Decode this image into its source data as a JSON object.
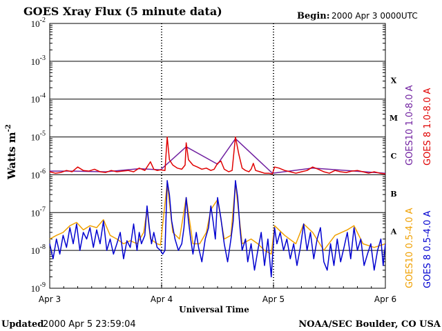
{
  "header": {
    "title": "GOES Xray Flux (5 minute data)",
    "begin_label": "Begin:",
    "begin_value": "2000 Apr 3 0000UTC"
  },
  "footer": {
    "updated_label": "Updated",
    "updated_value": "2000 Apr  5 23:59:04",
    "source": "NOAA/SEC Boulder, CO USA"
  },
  "chart_data": {
    "type": "line",
    "title": "GOES Xray Flux (5 minute data)",
    "xlabel": "Universal Time",
    "ylabel": "Watts m",
    "ylabel_superscript": "-2",
    "x_ticks": [
      "Apr 3",
      "Apr 4",
      "Apr 5",
      "Apr 6"
    ],
    "x_range_days": [
      0,
      3
    ],
    "y_scale": "log",
    "y_ticks": [
      {
        "base": "10",
        "exp": "-9",
        "value": 1e-09
      },
      {
        "base": "10",
        "exp": "-8",
        "value": 1e-08
      },
      {
        "base": "10",
        "exp": "-7",
        "value": 1e-07
      },
      {
        "base": "10",
        "exp": "-6",
        "value": 1e-06
      },
      {
        "base": "10",
        "exp": "-5",
        "value": 1e-05
      },
      {
        "base": "10",
        "exp": "-4",
        "value": 0.0001
      },
      {
        "base": "10",
        "exp": "-3",
        "value": 0.001
      },
      {
        "base": "10",
        "exp": "-2",
        "value": 0.01
      }
    ],
    "ylim": [
      1e-09,
      0.01
    ],
    "flare_classes": [
      {
        "label": "A",
        "value": 3.16e-08
      },
      {
        "label": "B",
        "value": 3.16e-07
      },
      {
        "label": "C",
        "value": 3.16e-06
      },
      {
        "label": "M",
        "value": 3.16e-05
      },
      {
        "label": "X",
        "value": 0.000316
      }
    ],
    "grid": "horizontal lines at each decade; dotted vertical lines at day boundaries",
    "legend_placement": "right",
    "series": [
      {
        "name": "GOES 8 1.0-8.0 A",
        "color": "#e00000",
        "points": [
          [
            0.0,
            1.2e-06
          ],
          [
            0.05,
            1.1e-06
          ],
          [
            0.1,
            1.15e-06
          ],
          [
            0.15,
            1.3e-06
          ],
          [
            0.2,
            1.2e-06
          ],
          [
            0.25,
            1.6e-06
          ],
          [
            0.3,
            1.3e-06
          ],
          [
            0.35,
            1.25e-06
          ],
          [
            0.4,
            1.4e-06
          ],
          [
            0.45,
            1.2e-06
          ],
          [
            0.5,
            1.15e-06
          ],
          [
            0.55,
            1.3e-06
          ],
          [
            0.6,
            1.2e-06
          ],
          [
            0.65,
            1.25e-06
          ],
          [
            0.7,
            1.3e-06
          ],
          [
            0.75,
            1.2e-06
          ],
          [
            0.8,
            1.5e-06
          ],
          [
            0.85,
            1.3e-06
          ],
          [
            0.9,
            2.2e-06
          ],
          [
            0.93,
            1.4e-06
          ],
          [
            0.96,
            1.3e-06
          ],
          [
            0.99,
            1.35e-06
          ],
          [
            1.03,
            1.3e-06
          ],
          [
            1.05,
            1e-05
          ],
          [
            1.07,
            2.5e-06
          ],
          [
            1.1,
            1.8e-06
          ],
          [
            1.14,
            1.5e-06
          ],
          [
            1.18,
            1.4e-06
          ],
          [
            1.21,
            1.8e-06
          ],
          [
            1.22,
            7e-06
          ],
          [
            1.24,
            2.5e-06
          ],
          [
            1.28,
            1.8e-06
          ],
          [
            1.32,
            1.6e-06
          ],
          [
            1.36,
            1.4e-06
          ],
          [
            1.4,
            1.5e-06
          ],
          [
            1.44,
            1.3e-06
          ],
          [
            1.47,
            1.4e-06
          ],
          [
            1.5,
            2e-06
          ],
          [
            1.53,
            2.3e-06
          ],
          [
            1.56,
            1.4e-06
          ],
          [
            1.6,
            1.2e-06
          ],
          [
            1.63,
            1.3e-06
          ],
          [
            1.66,
            1e-05
          ],
          [
            1.69,
            3.5e-06
          ],
          [
            1.72,
            1.5e-06
          ],
          [
            1.75,
            1.3e-06
          ],
          [
            1.78,
            1.2e-06
          ],
          [
            1.8,
            1.4e-06
          ],
          [
            1.82,
            2e-06
          ],
          [
            1.84,
            1.3e-06
          ],
          [
            1.88,
            1.2e-06
          ],
          [
            1.92,
            1.1e-06
          ],
          [
            1.96,
            1.1e-06
          ],
          [
            1.99,
            1.05e-06
          ],
          [
            2.01,
            1.6e-06
          ],
          [
            2.05,
            1.5e-06
          ],
          [
            2.1,
            1.3e-06
          ],
          [
            2.15,
            1.2e-06
          ],
          [
            2.2,
            1.1e-06
          ],
          [
            2.25,
            1.2e-06
          ],
          [
            2.3,
            1.3e-06
          ],
          [
            2.35,
            1.6e-06
          ],
          [
            2.4,
            1.4e-06
          ],
          [
            2.45,
            1.2e-06
          ],
          [
            2.5,
            1.1e-06
          ],
          [
            2.55,
            1.3e-06
          ],
          [
            2.6,
            1.2e-06
          ],
          [
            2.65,
            1.15e-06
          ],
          [
            2.7,
            1.25e-06
          ],
          [
            2.75,
            1.3e-06
          ],
          [
            2.8,
            1.2e-06
          ],
          [
            2.85,
            1.1e-06
          ],
          [
            2.9,
            1.2e-06
          ],
          [
            2.95,
            1.1e-06
          ],
          [
            3.0,
            1.05e-06
          ]
        ]
      },
      {
        "name": "GOES10 1.0-8.0 A",
        "color": "#7020a0",
        "points": [
          [
            0.0,
            1.25e-06
          ],
          [
            0.2,
            1.25e-06
          ],
          [
            0.5,
            1.2e-06
          ],
          [
            0.8,
            1.45e-06
          ],
          [
            0.99,
            1.35e-06
          ],
          [
            1.22,
            5.5e-06
          ],
          [
            1.5,
            1.9e-06
          ],
          [
            1.66,
            9e-06
          ],
          [
            1.99,
            1.1e-06
          ],
          [
            2.35,
            1.5e-06
          ],
          [
            3.0,
            1.1e-06
          ]
        ]
      },
      {
        "name": "GOES 8 0.5-4.0 A",
        "color": "#0000d0",
        "points": [
          [
            0.0,
            1.5e-08
          ],
          [
            0.03,
            6e-09
          ],
          [
            0.06,
            2e-08
          ],
          [
            0.09,
            8e-09
          ],
          [
            0.12,
            2.5e-08
          ],
          [
            0.15,
            1.2e-08
          ],
          [
            0.18,
            4e-08
          ],
          [
            0.21,
            1.5e-08
          ],
          [
            0.24,
            5e-08
          ],
          [
            0.27,
            1e-08
          ],
          [
            0.3,
            3e-08
          ],
          [
            0.33,
            2e-08
          ],
          [
            0.36,
            4e-08
          ],
          [
            0.39,
            1.2e-08
          ],
          [
            0.42,
            3.5e-08
          ],
          [
            0.45,
            1.5e-08
          ],
          [
            0.48,
            6e-08
          ],
          [
            0.51,
            1e-08
          ],
          [
            0.54,
            2e-08
          ],
          [
            0.57,
            8e-09
          ],
          [
            0.6,
            1.5e-08
          ],
          [
            0.63,
            3e-08
          ],
          [
            0.66,
            6e-09
          ],
          [
            0.69,
            1.8e-08
          ],
          [
            0.72,
            1.2e-08
          ],
          [
            0.75,
            5e-08
          ],
          [
            0.78,
            1e-08
          ],
          [
            0.8,
            3e-08
          ],
          [
            0.82,
            1.5e-08
          ],
          [
            0.85,
            2.5e-08
          ],
          [
            0.87,
            1.5e-07
          ],
          [
            0.89,
            4e-08
          ],
          [
            0.91,
            1.5e-08
          ],
          [
            0.93,
            3e-08
          ],
          [
            0.96,
            1.2e-08
          ],
          [
            0.99,
            1e-08
          ],
          [
            1.01,
            8e-09
          ],
          [
            1.03,
            1e-08
          ],
          [
            1.05,
            7e-07
          ],
          [
            1.07,
            3e-07
          ],
          [
            1.09,
            6e-08
          ],
          [
            1.12,
            2e-08
          ],
          [
            1.15,
            1e-08
          ],
          [
            1.18,
            1.5e-08
          ],
          [
            1.2,
            4e-08
          ],
          [
            1.22,
            2.5e-07
          ],
          [
            1.24,
            6e-08
          ],
          [
            1.26,
            2e-08
          ],
          [
            1.28,
            8e-09
          ],
          [
            1.31,
            3e-08
          ],
          [
            1.33,
            1.2e-08
          ],
          [
            1.36,
            5e-09
          ],
          [
            1.39,
            2e-08
          ],
          [
            1.42,
            4e-08
          ],
          [
            1.44,
            1.5e-07
          ],
          [
            1.46,
            6e-08
          ],
          [
            1.48,
            2e-08
          ],
          [
            1.5,
            2.5e-07
          ],
          [
            1.53,
            7e-08
          ],
          [
            1.56,
            1.5e-08
          ],
          [
            1.59,
            5e-09
          ],
          [
            1.62,
            2e-08
          ],
          [
            1.64,
            6e-08
          ],
          [
            1.66,
            7e-07
          ],
          [
            1.68,
            2.5e-07
          ],
          [
            1.7,
            4e-08
          ],
          [
            1.72,
            1e-08
          ],
          [
            1.75,
            2e-08
          ],
          [
            1.77,
            5e-09
          ],
          [
            1.8,
            1.5e-08
          ],
          [
            1.83,
            3e-09
          ],
          [
            1.86,
            1e-08
          ],
          [
            1.89,
            3e-08
          ],
          [
            1.92,
            4e-09
          ],
          [
            1.95,
            2e-08
          ],
          [
            1.98,
            2e-09
          ],
          [
            1.99,
            6e-09
          ],
          [
            2.01,
            4e-08
          ],
          [
            2.03,
            1.5e-08
          ],
          [
            2.06,
            3e-08
          ],
          [
            2.09,
            1e-08
          ],
          [
            2.12,
            2e-08
          ],
          [
            2.15,
            6e-09
          ],
          [
            2.18,
            1.5e-08
          ],
          [
            2.21,
            4e-09
          ],
          [
            2.24,
            1.2e-08
          ],
          [
            2.27,
            5e-08
          ],
          [
            2.3,
            1e-08
          ],
          [
            2.33,
            3e-08
          ],
          [
            2.36,
            6e-09
          ],
          [
            2.39,
            2e-08
          ],
          [
            2.42,
            4e-08
          ],
          [
            2.45,
            5e-09
          ],
          [
            2.48,
            3e-09
          ],
          [
            2.51,
            1.5e-08
          ],
          [
            2.54,
            4e-09
          ],
          [
            2.57,
            2e-08
          ],
          [
            2.6,
            5e-09
          ],
          [
            2.63,
            1.2e-08
          ],
          [
            2.66,
            3e-08
          ],
          [
            2.69,
            6e-09
          ],
          [
            2.72,
            4e-08
          ],
          [
            2.75,
            1e-08
          ],
          [
            2.78,
            2e-08
          ],
          [
            2.81,
            4e-09
          ],
          [
            2.84,
            8e-09
          ],
          [
            2.87,
            1.5e-08
          ],
          [
            2.9,
            3e-09
          ],
          [
            2.93,
            1e-08
          ],
          [
            2.96,
            2e-08
          ],
          [
            2.98,
            4e-09
          ],
          [
            3.0,
            1.5e-08
          ]
        ]
      },
      {
        "name": "GOES10 0.5-4.0 A",
        "color": "#f0a000",
        "points": [
          [
            0.0,
            2e-08
          ],
          [
            0.06,
            2.5e-08
          ],
          [
            0.12,
            3e-08
          ],
          [
            0.18,
            4.5e-08
          ],
          [
            0.24,
            5.5e-08
          ],
          [
            0.3,
            3.5e-08
          ],
          [
            0.36,
            4.5e-08
          ],
          [
            0.42,
            4e-08
          ],
          [
            0.48,
            6.5e-08
          ],
          [
            0.54,
            2.5e-08
          ],
          [
            0.6,
            2e-08
          ],
          [
            0.66,
            1.5e-08
          ],
          [
            0.72,
            1.8e-08
          ],
          [
            0.78,
            1.5e-08
          ],
          [
            0.84,
            3e-08
          ],
          [
            0.87,
            1.2e-07
          ],
          [
            0.9,
            2e-08
          ],
          [
            0.96,
            1.5e-08
          ],
          [
            0.99,
            1.4e-08
          ],
          [
            1.05,
            6e-07
          ],
          [
            1.1,
            3e-08
          ],
          [
            1.16,
            2e-08
          ],
          [
            1.22,
            2.5e-07
          ],
          [
            1.28,
            1.5e-08
          ],
          [
            1.34,
            1.5e-08
          ],
          [
            1.4,
            3e-08
          ],
          [
            1.44,
            1.2e-07
          ],
          [
            1.5,
            2.2e-07
          ],
          [
            1.56,
            2e-08
          ],
          [
            1.62,
            2.5e-08
          ],
          [
            1.66,
            6e-07
          ],
          [
            1.72,
            1.5e-08
          ],
          [
            1.8,
            2e-08
          ],
          [
            1.86,
            1.5e-08
          ],
          [
            1.92,
            1e-08
          ],
          [
            1.98,
            8e-09
          ],
          [
            2.01,
            4.5e-08
          ],
          [
            2.1,
            2.5e-08
          ],
          [
            2.2,
            1.5e-08
          ],
          [
            2.27,
            5e-08
          ],
          [
            2.35,
            3e-08
          ],
          [
            2.45,
            1e-08
          ],
          [
            2.55,
            2.5e-08
          ],
          [
            2.66,
            3.5e-08
          ],
          [
            2.72,
            4.5e-08
          ],
          [
            2.8,
            1.5e-08
          ],
          [
            2.9,
            1.2e-08
          ],
          [
            3.0,
            1.5e-08
          ]
        ]
      }
    ],
    "legend_1_8": [
      {
        "name": "GOES10 1.0-8.0 A",
        "color": "#7020a0"
      },
      {
        "name": "GOES 8 1.0-8.0 A",
        "color": "#e00000"
      }
    ],
    "legend_05_4": [
      {
        "name": "GOES10 0.5-4.0 A",
        "color": "#f0a000"
      },
      {
        "name": "GOES 8 0.5-4.0 A",
        "color": "#0000d0"
      }
    ]
  }
}
